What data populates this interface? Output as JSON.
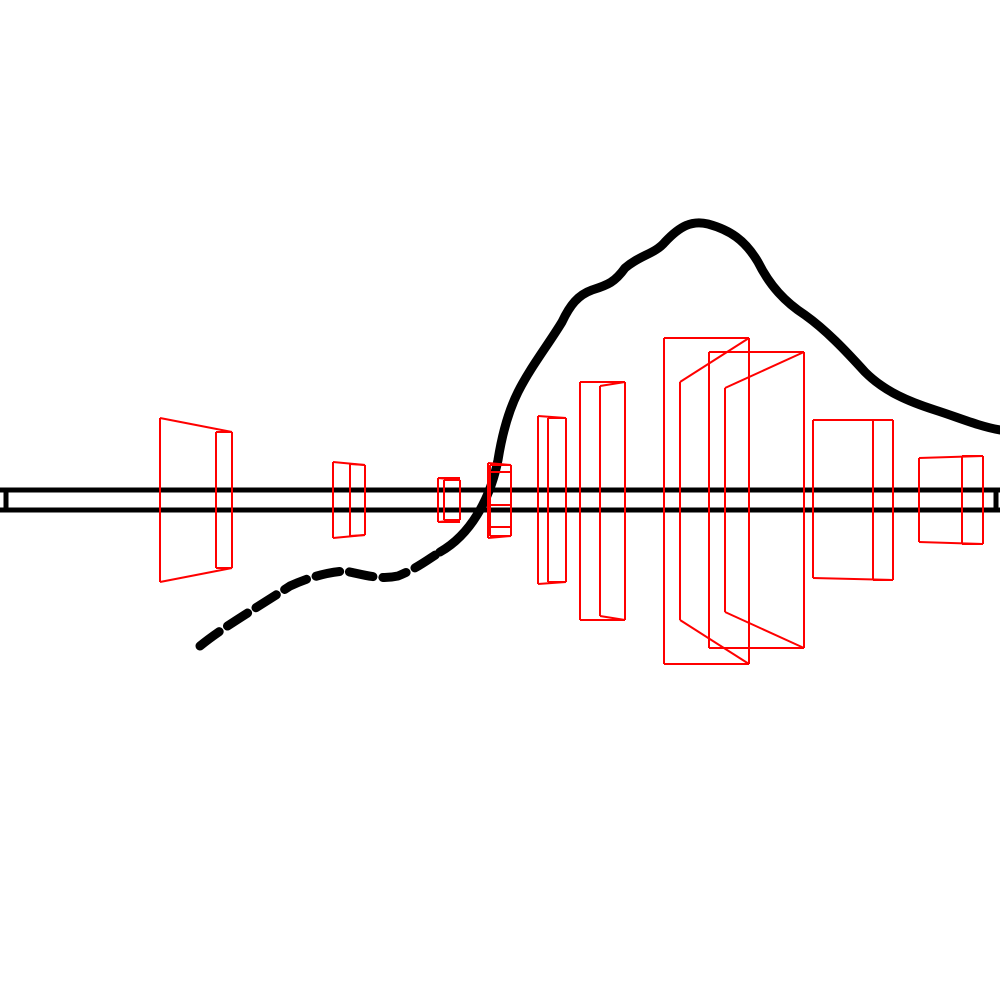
{
  "scene": {
    "background": "#ffffff",
    "colors": {
      "track": "#000000",
      "terrain": "#000000",
      "obstacle": "#ff0000"
    },
    "obstacle_count": 13,
    "terrain_style": "hand-drawn stroke, partly dashed on the left"
  }
}
